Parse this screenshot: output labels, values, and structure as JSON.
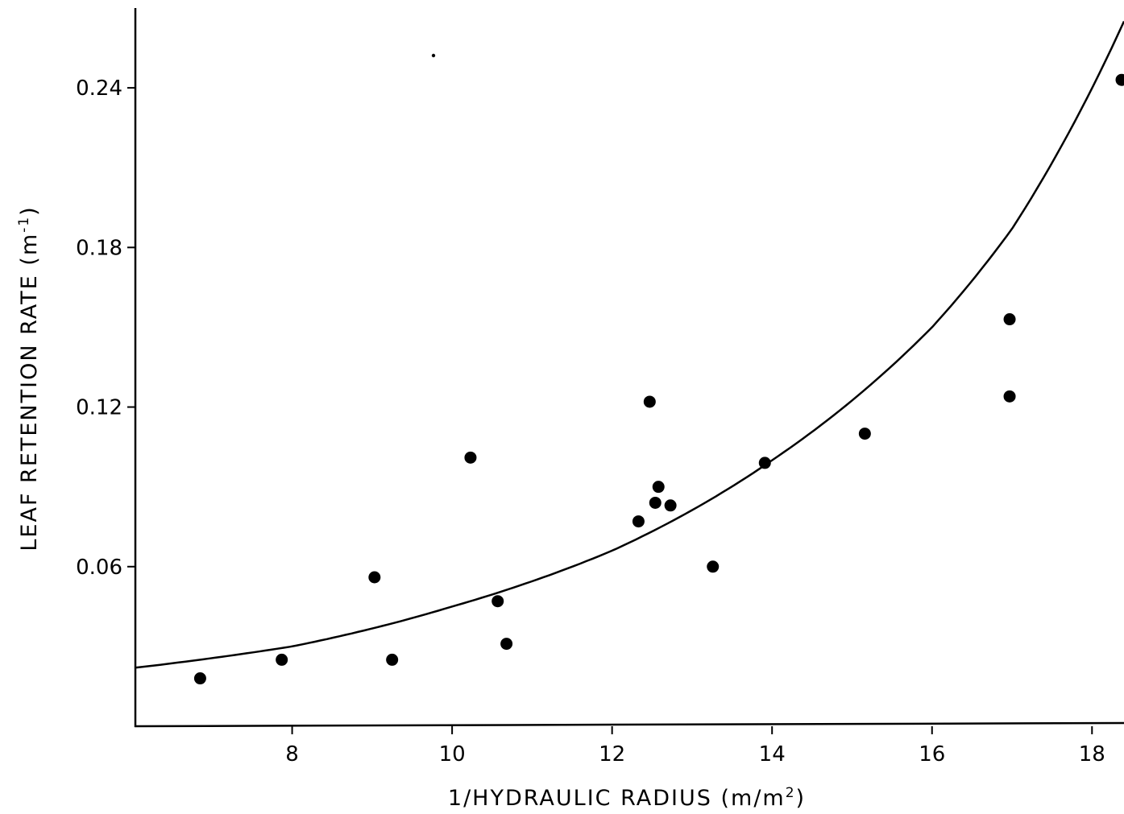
{
  "chart_data": {
    "type": "scatter",
    "xlabel_prefix": "1/HYDRAULIC RADIUS (m/m",
    "xlabel_sup": "2",
    "xlabel_suffix": ")",
    "ylabel_prefix": "LEAF RETENTION RATE (m",
    "ylabel_sup": "-1",
    "ylabel_suffix": ")",
    "xlim": [
      6.04,
      18.4
    ],
    "ylim": [
      0.0,
      0.27
    ],
    "x_ticks": [
      8,
      10,
      12,
      14,
      16,
      18
    ],
    "x_tick_labels": [
      "8",
      "10",
      "12",
      "14",
      "16",
      "18"
    ],
    "y_ticks": [
      0.06,
      0.12,
      0.18,
      0.24
    ],
    "y_tick_labels": [
      "0.06",
      "0.12",
      "0.18",
      "0.24"
    ],
    "grid": false,
    "legend": "none",
    "series": [
      {
        "marker": "filled-circle",
        "points": [
          {
            "x": 6.85,
            "y": 0.018
          },
          {
            "x": 7.87,
            "y": 0.025
          },
          {
            "x": 9.03,
            "y": 0.056
          },
          {
            "x": 9.25,
            "y": 0.025
          },
          {
            "x": 10.23,
            "y": 0.101
          },
          {
            "x": 10.57,
            "y": 0.047
          },
          {
            "x": 10.68,
            "y": 0.031
          },
          {
            "x": 12.33,
            "y": 0.077
          },
          {
            "x": 12.47,
            "y": 0.122
          },
          {
            "x": 12.54,
            "y": 0.084
          },
          {
            "x": 12.58,
            "y": 0.09
          },
          {
            "x": 12.73,
            "y": 0.083
          },
          {
            "x": 13.26,
            "y": 0.06
          },
          {
            "x": 13.91,
            "y": 0.099
          },
          {
            "x": 15.16,
            "y": 0.11
          },
          {
            "x": 16.97,
            "y": 0.153
          },
          {
            "x": 16.97,
            "y": 0.124
          },
          {
            "x": 18.37,
            "y": 0.243
          }
        ]
      }
    ],
    "fit_curve": {
      "kind": "exponential",
      "points": [
        {
          "x": 6.04,
          "y": 0.022
        },
        {
          "x": 8.0,
          "y": 0.03
        },
        {
          "x": 10.0,
          "y": 0.045
        },
        {
          "x": 12.0,
          "y": 0.066
        },
        {
          "x": 14.0,
          "y": 0.1
        },
        {
          "x": 16.0,
          "y": 0.15
        },
        {
          "x": 17.0,
          "y": 0.187
        },
        {
          "x": 18.4,
          "y": 0.265
        }
      ]
    }
  }
}
